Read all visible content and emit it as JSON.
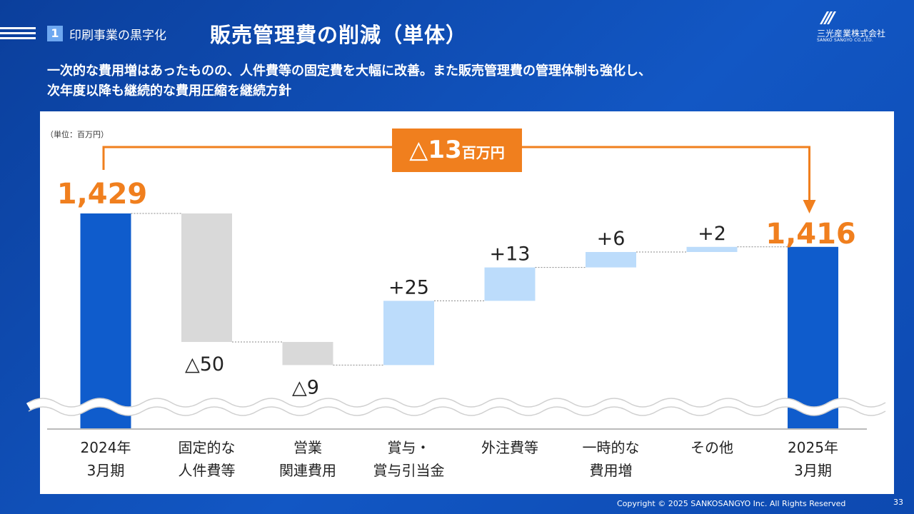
{
  "header": {
    "section_number": "1",
    "section_label": "印刷事業の黒字化",
    "title": "販売管理費の削減（単体）",
    "logo_jp": "三光産業株式会社",
    "logo_en": "SANKO SANGYO CO.,LTD."
  },
  "subtitle": {
    "line1": "一次的な費用増はあったものの、人件費等の固定費を大幅に改善。また販売管理費の管理体制も強化し、",
    "line2": "次年度以降も継続的な費用圧縮を継続方針"
  },
  "chart_data": {
    "type": "bar",
    "subtype": "waterfall",
    "unit_label": "（単位：百万円）",
    "categories": [
      [
        "2024年",
        "3月期"
      ],
      [
        "固定的な",
        "人件費等"
      ],
      [
        "営業",
        "関連費用"
      ],
      [
        "賞与・",
        "賞与引当金"
      ],
      [
        "外注費等"
      ],
      [
        "一時的な",
        "費用増"
      ],
      [
        "その他"
      ],
      [
        "2025年",
        "3月期"
      ]
    ],
    "values": [
      1429,
      -50,
      -9,
      25,
      13,
      6,
      2,
      1416
    ],
    "kinds": [
      "total",
      "delta",
      "delta",
      "delta",
      "delta",
      "delta",
      "delta",
      "total"
    ],
    "data_labels": [
      "1,429",
      "△50",
      "△9",
      "+25",
      "+13",
      "+6",
      "+2",
      "1,416"
    ],
    "axis_break": true,
    "total_change": {
      "value": "△13",
      "unit": "百万円"
    },
    "colors": {
      "total": "#0f5ccc",
      "decrease": "#d9d9d9",
      "increase": "#bcdcfb",
      "highlight": "#f07f1e"
    }
  },
  "footer": {
    "copyright": "Copyright © 2025  SANKOSANGYO Inc. All Rights Reserved",
    "page": "33"
  }
}
